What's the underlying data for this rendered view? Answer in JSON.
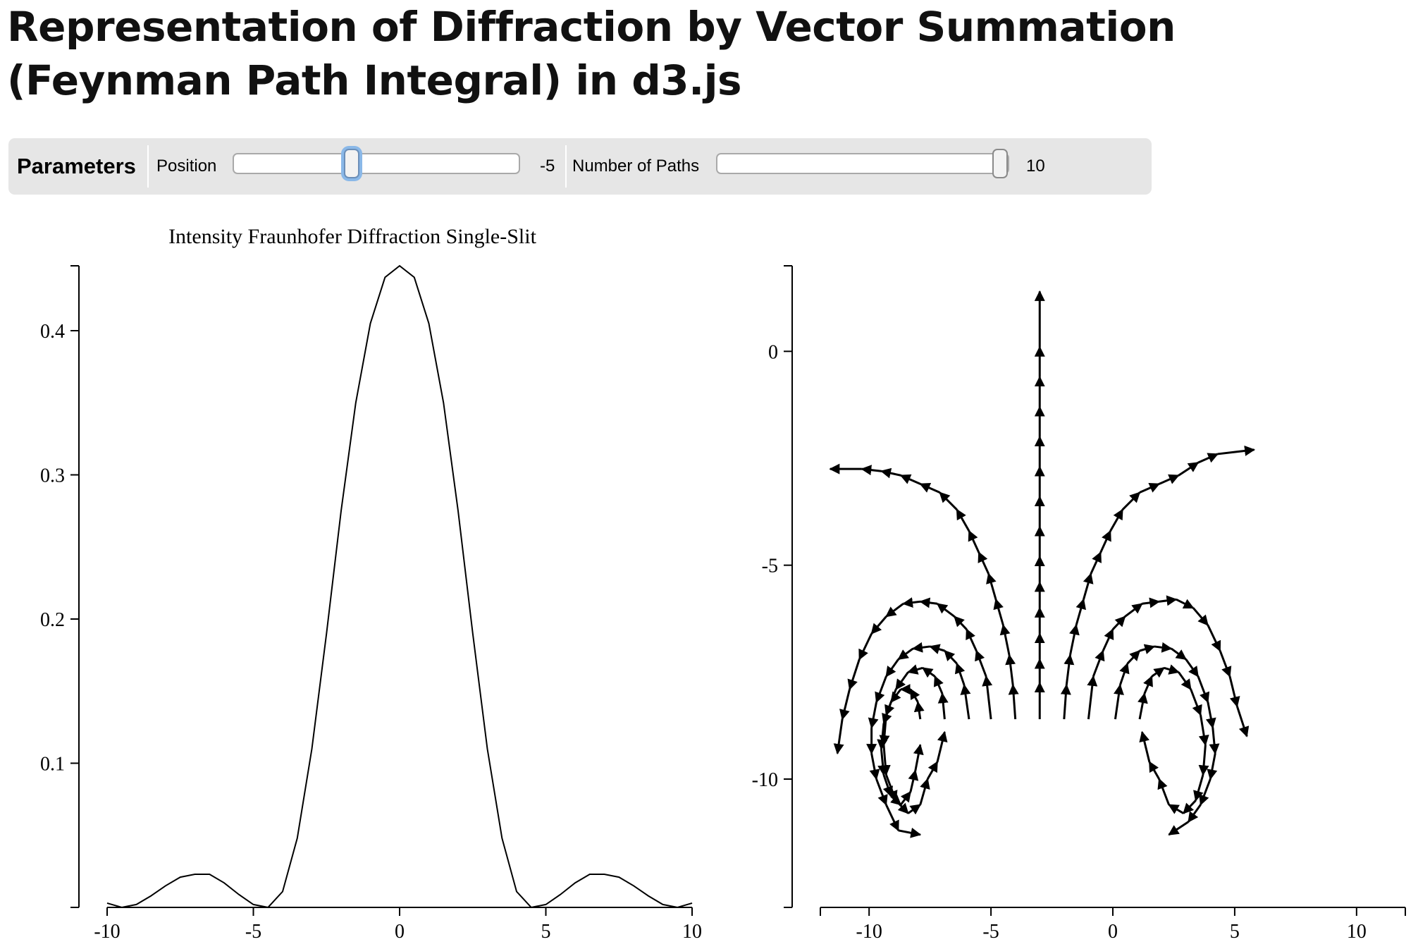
{
  "page": {
    "title_line1": "Representation of Diffraction by Vector Summation",
    "title_line2": "(Feynman Path Integral) in d3.js"
  },
  "controls": {
    "heading": "Parameters",
    "position": {
      "label": "Position",
      "value": -5,
      "value_text": "-5",
      "min": -10,
      "max": 10
    },
    "paths": {
      "label": "Number of Paths",
      "value": 10,
      "value_text": "10",
      "min": 1,
      "max": 10
    }
  },
  "chart_data": [
    {
      "type": "line",
      "title": "Intensity Fraunhofer Diffraction Single-Slit",
      "xlabel": "",
      "ylabel": "",
      "xlim": [
        -10,
        10
      ],
      "ylim": [
        0,
        0.445
      ],
      "x_ticks": [
        -10,
        -5,
        0,
        5,
        10
      ],
      "y_ticks": [
        0.1,
        0.2,
        0.3,
        0.4
      ],
      "x_tick_labels": [
        "-10",
        "-5",
        "0",
        "5",
        "10"
      ],
      "y_tick_labels": [
        "0.1",
        "0.2",
        "0.3",
        "0.4"
      ],
      "grid": false,
      "series": [
        {
          "x": [
            -10,
            -9.5,
            -9,
            -8.5,
            -8,
            -7.5,
            -7,
            -6.5,
            -6,
            -5.5,
            -5,
            -4.5,
            -4,
            -3.5,
            -3,
            -2.5,
            -2,
            -1.5,
            -1,
            -0.5,
            0,
            0.5,
            1,
            1.5,
            2,
            2.5,
            3,
            3.5,
            4,
            4.5,
            5,
            5.5,
            6,
            6.5,
            7,
            7.5,
            8,
            8.5,
            9,
            9.5,
            10
          ],
          "y": [
            0.003,
            0.0,
            0.002,
            0.008,
            0.015,
            0.021,
            0.023,
            0.023,
            0.017,
            0.009,
            0.002,
            0.0,
            0.011,
            0.048,
            0.11,
            0.19,
            0.275,
            0.35,
            0.405,
            0.437,
            0.445,
            0.437,
            0.405,
            0.35,
            0.275,
            0.19,
            0.11,
            0.048,
            0.011,
            0.0,
            0.002,
            0.009,
            0.017,
            0.023,
            0.023,
            0.021,
            0.015,
            0.008,
            0.002,
            0.0,
            0.003
          ]
        }
      ]
    },
    {
      "type": "vector",
      "title": "",
      "xlabel": "",
      "ylabel": "",
      "xlim": [
        -12,
        12
      ],
      "ylim": [
        -13,
        2
      ],
      "x_ticks": [
        -10,
        -5,
        0,
        5,
        10
      ],
      "y_ticks": [
        0,
        -5,
        -10
      ],
      "x_tick_labels": [
        "-10",
        "-5",
        "0",
        "5",
        "10"
      ],
      "y_tick_labels": [
        "0",
        "-5",
        "-10"
      ],
      "grid": false,
      "paths": [
        {
          "start": [
            -3,
            -8.6
          ],
          "points": [
            [
              -3,
              -7.75
            ],
            [
              -3,
              -7.2
            ],
            [
              -3,
              -6.6
            ],
            [
              -3,
              -6.0
            ],
            [
              -3,
              -5.4
            ],
            [
              -3,
              -4.8
            ],
            [
              -3,
              -4.1
            ],
            [
              -3,
              -3.4
            ],
            [
              -3,
              -2.7
            ],
            [
              -3,
              -2.0
            ],
            [
              -3,
              -1.3
            ],
            [
              -3,
              -0.6
            ],
            [
              -3,
              0.1
            ],
            [
              -3,
              1.4
            ]
          ]
        },
        {
          "start": [
            -4,
            -8.6
          ],
          "points": [
            [
              -4.1,
              -7.8
            ],
            [
              -4.25,
              -7.1
            ],
            [
              -4.5,
              -6.4
            ],
            [
              -4.8,
              -5.8
            ],
            [
              -5.1,
              -5.2
            ],
            [
              -5.5,
              -4.7
            ],
            [
              -5.9,
              -4.2
            ],
            [
              -6.4,
              -3.7
            ],
            [
              -7.1,
              -3.3
            ],
            [
              -7.9,
              -3.1
            ],
            [
              -8.7,
              -2.9
            ],
            [
              -9.5,
              -2.8
            ],
            [
              -10.3,
              -2.75
            ],
            [
              -11.6,
              -2.75
            ]
          ]
        },
        {
          "start": [
            -5,
            -8.6
          ],
          "points": [
            [
              -5.2,
              -7.6
            ],
            [
              -5.6,
              -7.0
            ],
            [
              -6.0,
              -6.5
            ],
            [
              -6.5,
              -6.2
            ],
            [
              -7.2,
              -5.9
            ],
            [
              -7.9,
              -5.85
            ],
            [
              -8.6,
              -5.9
            ],
            [
              -9.3,
              -6.2
            ],
            [
              -9.9,
              -6.6
            ],
            [
              -10.4,
              -7.2
            ],
            [
              -10.8,
              -7.9
            ],
            [
              -11.1,
              -8.6
            ],
            [
              -11.3,
              -9.4
            ]
          ]
        },
        {
          "start": [
            -5.9,
            -8.6
          ],
          "points": [
            [
              -6.1,
              -7.8
            ],
            [
              -6.4,
              -7.3
            ],
            [
              -6.9,
              -7.0
            ],
            [
              -7.5,
              -6.9
            ],
            [
              -8.2,
              -6.95
            ],
            [
              -8.8,
              -7.2
            ],
            [
              -9.3,
              -7.6
            ],
            [
              -9.7,
              -8.2
            ],
            [
              -9.9,
              -8.8
            ],
            [
              -9.9,
              -9.4
            ],
            [
              -9.7,
              -10.0
            ],
            [
              -9.3,
              -10.6
            ],
            [
              -8.8,
              -11.2
            ],
            [
              -7.9,
              -11.3
            ]
          ]
        },
        {
          "start": [
            -6.9,
            -8.6
          ],
          "points": [
            [
              -7.0,
              -8.0
            ],
            [
              -7.3,
              -7.6
            ],
            [
              -7.8,
              -7.4
            ],
            [
              -8.4,
              -7.5
            ],
            [
              -8.9,
              -7.9
            ],
            [
              -9.3,
              -8.5
            ],
            [
              -9.4,
              -9.2
            ],
            [
              -9.3,
              -9.9
            ],
            [
              -8.9,
              -10.5
            ],
            [
              -8.4,
              -10.8
            ],
            [
              -7.9,
              -10.6
            ],
            [
              -7.6,
              -10.0
            ],
            [
              -7.2,
              -9.6
            ],
            [
              -6.9,
              -8.9
            ]
          ]
        },
        {
          "start": [
            -7.9,
            -8.6
          ],
          "points": [
            [
              -8.0,
              -8.2
            ],
            [
              -8.3,
              -7.9
            ],
            [
              -8.7,
              -7.9
            ],
            [
              -9.1,
              -8.2
            ],
            [
              -9.4,
              -8.7
            ],
            [
              -9.5,
              -9.3
            ],
            [
              -9.4,
              -9.9
            ],
            [
              -9.1,
              -10.4
            ],
            [
              -8.7,
              -10.6
            ],
            [
              -8.3,
              -10.3
            ],
            [
              -8.1,
              -9.8
            ],
            [
              -7.9,
              -9.2
            ]
          ]
        },
        {
          "start": [
            -2,
            -8.6
          ],
          "points": [
            [
              -1.9,
              -7.8
            ],
            [
              -1.75,
              -7.1
            ],
            [
              -1.5,
              -6.4
            ],
            [
              -1.2,
              -5.8
            ],
            [
              -0.9,
              -5.2
            ],
            [
              -0.5,
              -4.7
            ],
            [
              -0.1,
              -4.2
            ],
            [
              0.4,
              -3.7
            ],
            [
              1.1,
              -3.3
            ],
            [
              1.9,
              -3.1
            ],
            [
              2.7,
              -2.9
            ],
            [
              3.5,
              -2.6
            ],
            [
              4.3,
              -2.4
            ],
            [
              5.8,
              -2.3
            ]
          ]
        },
        {
          "start": [
            -1,
            -8.6
          ],
          "points": [
            [
              -0.8,
              -7.6
            ],
            [
              -0.4,
              -7.0
            ],
            [
              0.0,
              -6.5
            ],
            [
              0.5,
              -6.2
            ],
            [
              1.2,
              -5.9
            ],
            [
              1.9,
              -5.85
            ],
            [
              2.6,
              -5.8
            ],
            [
              3.3,
              -6.0
            ],
            [
              3.9,
              -6.4
            ],
            [
              4.4,
              -7.0
            ],
            [
              4.8,
              -7.6
            ],
            [
              5.1,
              -8.3
            ],
            [
              5.5,
              -9.0
            ]
          ]
        },
        {
          "start": [
            0.1,
            -8.6
          ],
          "points": [
            [
              0.3,
              -7.8
            ],
            [
              0.6,
              -7.3
            ],
            [
              1.1,
              -7.0
            ],
            [
              1.7,
              -6.9
            ],
            [
              2.4,
              -6.95
            ],
            [
              3.0,
              -7.2
            ],
            [
              3.5,
              -7.6
            ],
            [
              3.9,
              -8.2
            ],
            [
              4.1,
              -8.8
            ],
            [
              4.2,
              -9.4
            ],
            [
              4.0,
              -10.0
            ],
            [
              3.6,
              -10.6
            ],
            [
              3.1,
              -11.0
            ],
            [
              2.3,
              -11.3
            ]
          ]
        },
        {
          "start": [
            1.1,
            -8.6
          ],
          "points": [
            [
              1.3,
              -8.0
            ],
            [
              1.6,
              -7.6
            ],
            [
              2.1,
              -7.4
            ],
            [
              2.7,
              -7.5
            ],
            [
              3.2,
              -7.9
            ],
            [
              3.6,
              -8.5
            ],
            [
              3.8,
              -9.2
            ],
            [
              3.7,
              -9.9
            ],
            [
              3.4,
              -10.5
            ],
            [
              2.9,
              -10.8
            ],
            [
              2.3,
              -10.6
            ],
            [
              1.9,
              -10.0
            ],
            [
              1.5,
              -9.6
            ],
            [
              1.2,
              -8.9
            ]
          ]
        }
      ]
    }
  ]
}
